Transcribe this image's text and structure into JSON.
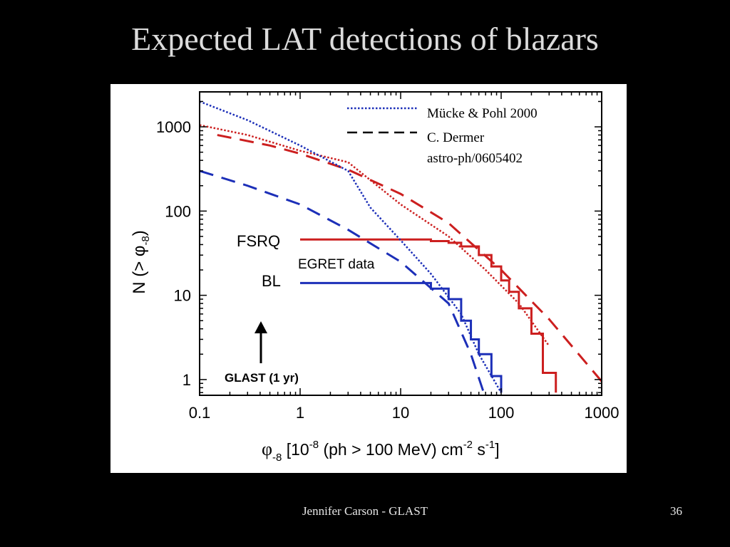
{
  "slide": {
    "title": "Expected LAT detections of blazars",
    "footer_author": "Jennifer Carson - GLAST",
    "footer_page": "36"
  },
  "colors": {
    "fsrq": "#cc1f1f",
    "bl": "#1c2fb8",
    "axis": "#000000",
    "background": "#000000",
    "panel": "#ffffff"
  },
  "chart_data": {
    "type": "line",
    "title": "",
    "x_scale": "log",
    "y_scale": "log",
    "xlim": [
      0.1,
      1000
    ],
    "ylim": [
      0.65,
      2600
    ],
    "x_ticks": [
      {
        "value": 0.1,
        "label": "0.1"
      },
      {
        "value": 1,
        "label": "1"
      },
      {
        "value": 10,
        "label": "10"
      },
      {
        "value": 100,
        "label": "100"
      },
      {
        "value": 1000,
        "label": "1000"
      }
    ],
    "y_ticks": [
      {
        "value": 1,
        "label": "1"
      },
      {
        "value": 10,
        "label": "10"
      },
      {
        "value": 100,
        "label": "100"
      },
      {
        "value": 1000,
        "label": "1000"
      }
    ],
    "xlabel": {
      "main": "φ",
      "sub": "-8",
      "text1": " [10",
      "sup1": "-8",
      "text2": " (ph > 100 MeV) cm",
      "sup2": "-2",
      "text3": " s",
      "sup3": "-1",
      "text4": "]"
    },
    "ylabel": {
      "text1": "N (> φ",
      "sub": "-8",
      "text2": ")"
    },
    "legend": {
      "position": "top-right",
      "entries": [
        {
          "style": "dotted",
          "label": "Mücke & Pohl 2000"
        },
        {
          "style": "dashed",
          "label": "C. Dermer"
        },
        {
          "style": "none",
          "label": "astro-ph/0605402"
        }
      ]
    },
    "annotations": [
      {
        "text": "FSRQ",
        "x": 0.5,
        "y": 46
      },
      {
        "text": "BL",
        "x": 0.5,
        "y": 14
      },
      {
        "text": "EGRET data",
        "x": 3.5,
        "y": 22
      },
      {
        "text": "GLAST (1 yr)",
        "x": 0.42,
        "y": 1.05,
        "arrow_from_y": 1.35,
        "arrow_to_y": 5.2
      }
    ],
    "series": [
      {
        "name": "FSRQ",
        "group": "fsrq",
        "style": "dotted",
        "x": [
          0.1,
          0.3,
          1,
          3,
          10,
          30,
          70,
          150,
          300
        ],
        "y": [
          1050,
          800,
          520,
          380,
          120,
          50,
          20,
          8,
          2.5
        ]
      },
      {
        "name": "FSRQ",
        "group": "fsrq",
        "style": "dashed",
        "x": [
          0.15,
          0.5,
          1,
          3,
          10,
          30,
          100,
          300,
          1000
        ],
        "y": [
          800,
          600,
          480,
          310,
          160,
          72,
          20,
          5.2,
          0.95
        ]
      },
      {
        "name": "FSRQ",
        "group": "fsrq",
        "style": "solid",
        "x": [
          1,
          8,
          20,
          30,
          40,
          60,
          80,
          100,
          120,
          150,
          200,
          260,
          350
        ],
        "y": [
          46,
          46,
          44,
          42,
          38,
          30,
          22,
          15,
          11,
          7,
          3.5,
          1.2,
          0.7
        ]
      },
      {
        "name": "BL",
        "group": "bl",
        "style": "dotted",
        "x": [
          0.1,
          0.3,
          1,
          3,
          5,
          10,
          20,
          40,
          60,
          100
        ],
        "y": [
          2000,
          1200,
          600,
          300,
          110,
          45,
          18,
          6,
          2,
          0.7
        ]
      },
      {
        "name": "BL",
        "group": "bl",
        "style": "dashed",
        "x": [
          0.1,
          0.3,
          1,
          3,
          10,
          30,
          50,
          70
        ],
        "y": [
          300,
          200,
          120,
          60,
          25,
          8,
          2,
          0.6
        ]
      },
      {
        "name": "BL",
        "group": "bl",
        "style": "solid",
        "x": [
          1,
          15,
          20,
          30,
          40,
          50,
          60,
          80,
          100
        ],
        "y": [
          14,
          14,
          12,
          9,
          5,
          3,
          2,
          1.1,
          0.7
        ]
      }
    ]
  }
}
